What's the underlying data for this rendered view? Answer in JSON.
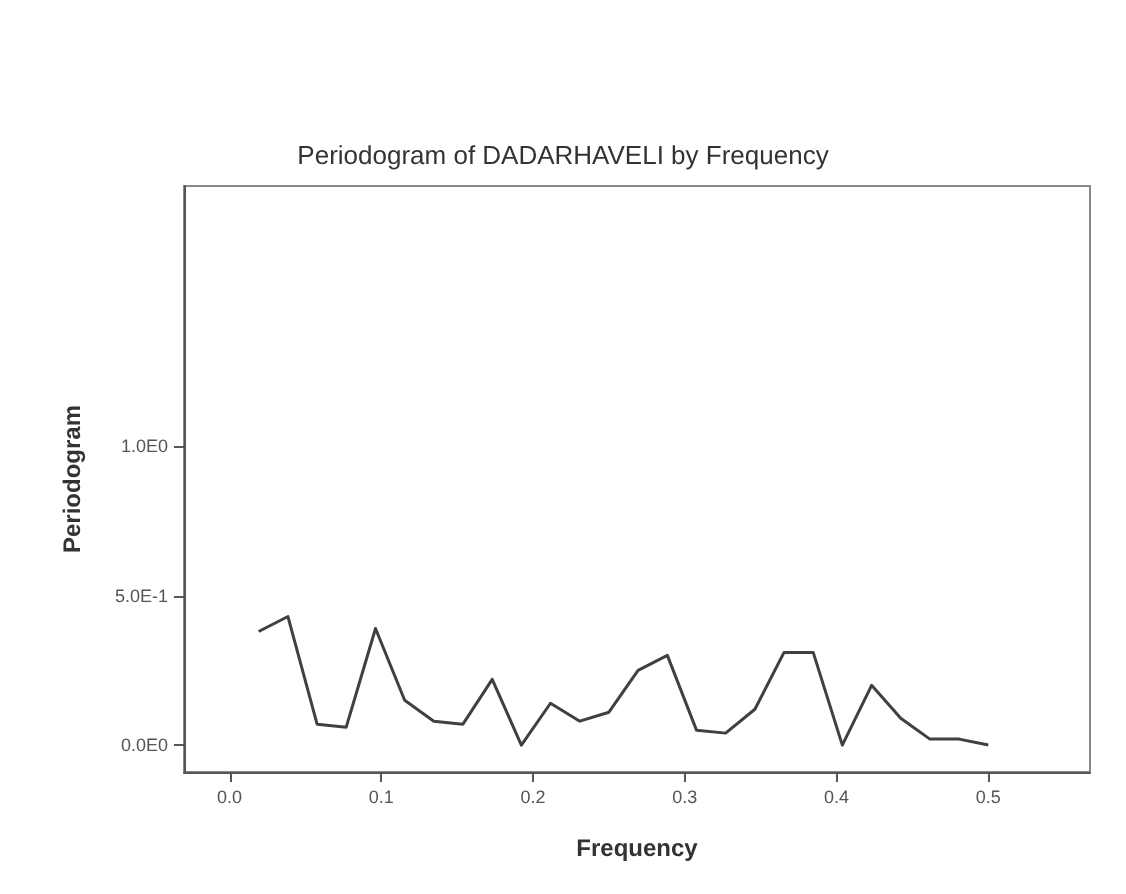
{
  "chart_data": {
    "type": "line",
    "title": "Periodogram of DADARHAVELI by Frequency",
    "xlabel": "Frequency",
    "ylabel": "Periodogram",
    "x": [
      0.0192,
      0.0385,
      0.0577,
      0.0769,
      0.0962,
      0.1154,
      0.1346,
      0.1538,
      0.1731,
      0.1923,
      0.2115,
      0.2308,
      0.25,
      0.2692,
      0.2885,
      0.3077,
      0.3269,
      0.3462,
      0.3654,
      0.3846,
      0.4038,
      0.4231,
      0.4423,
      0.4615,
      0.4808,
      0.5
    ],
    "series": [
      {
        "color": "#404040",
        "values": [
          0.38,
          0.43,
          0.07,
          0.06,
          0.39,
          0.15,
          0.08,
          0.07,
          0.22,
          0.0,
          0.14,
          0.08,
          0.11,
          0.25,
          0.3,
          0.05,
          0.04,
          0.12,
          0.31,
          0.31,
          0.0,
          0.2,
          0.09,
          0.02,
          0.02,
          0.0
        ]
      }
    ],
    "xlim": [
      -0.03,
      0.567
    ],
    "xticks": [
      {
        "value": 0,
        "label": "0.0"
      },
      0.1,
      0.2,
      0.3,
      0.4,
      0.5
    ],
    "ylim": [
      -0.09,
      1.87
    ],
    "yticks": [
      {
        "value": 0,
        "label": "0.0E0"
      },
      {
        "value": 0.5,
        "label": "5.0E-1"
      },
      {
        "value": 1,
        "label": "1.0E0"
      }
    ],
    "grid": false,
    "marker": "none",
    "line_style": "solid"
  }
}
